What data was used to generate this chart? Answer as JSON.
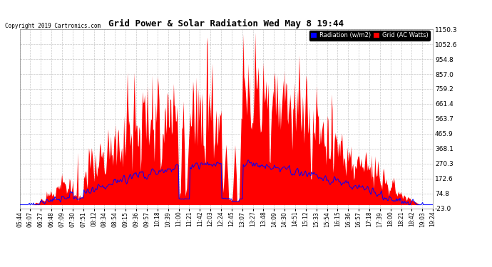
{
  "title": "Grid Power & Solar Radiation Wed May 8 19:44",
  "copyright": "Copyright 2019 Cartronics.com",
  "legend_labels": [
    "Radiation (w/m2)",
    "Grid (AC Watts)"
  ],
  "legend_colors": [
    "#0000ff",
    "#ff0000"
  ],
  "background_color": "#ffffff",
  "plot_bg_color": "#ffffff",
  "grid_color": "#b0b0b0",
  "red_fill_color": "#ff0000",
  "blue_line_color": "#0000ff",
  "ylim": [
    -23.0,
    1150.3
  ],
  "yticks": [
    -23.0,
    74.8,
    172.6,
    270.3,
    368.1,
    465.9,
    563.7,
    661.4,
    759.2,
    857.0,
    954.8,
    1052.6,
    1150.3
  ],
  "xtick_labels": [
    "05:44",
    "06:07",
    "06:27",
    "06:48",
    "07:09",
    "07:30",
    "07:51",
    "08:12",
    "08:34",
    "08:54",
    "09:15",
    "09:36",
    "09:57",
    "10:18",
    "10:39",
    "11:00",
    "11:21",
    "11:42",
    "12:03",
    "12:24",
    "12:45",
    "13:07",
    "13:27",
    "13:48",
    "14:09",
    "14:30",
    "14:51",
    "15:12",
    "15:33",
    "15:54",
    "16:15",
    "16:36",
    "16:57",
    "17:18",
    "17:39",
    "18:00",
    "18:21",
    "18:42",
    "19:03",
    "19:24"
  ],
  "num_points": 600
}
